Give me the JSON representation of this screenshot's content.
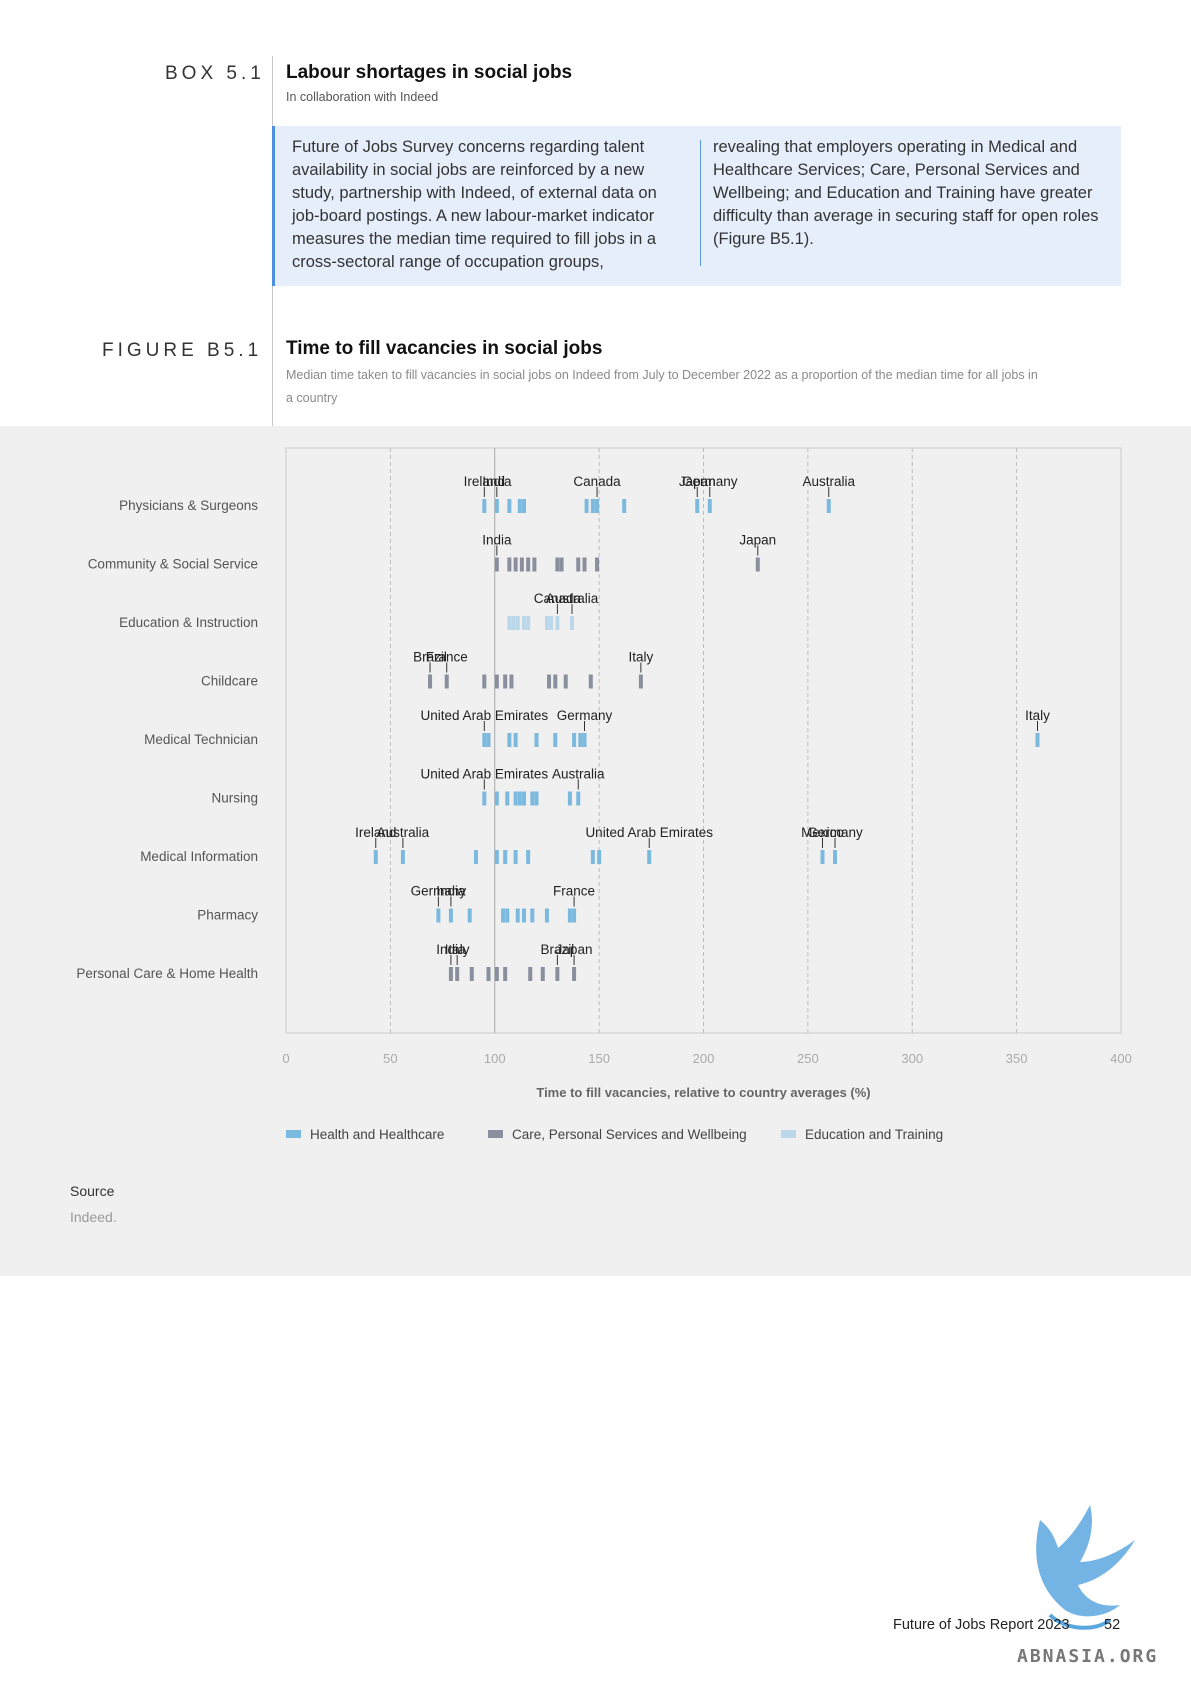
{
  "box": {
    "label": "BOX 5.1",
    "title": "Labour shortages in social jobs",
    "subtitle": "In collaboration with Indeed",
    "text_col1": "Future of Jobs Survey concerns regarding talent availability in social jobs are reinforced by a new study, partnership with Indeed, of external data on job-board postings. A new labour-market indicator measures the median time required to fill jobs in a cross-sectoral range of occupation groups,",
    "text_col2": "revealing that employers operating in Medical and Healthcare Services; Care, Personal Services and Wellbeing; and Education and Training have greater difficulty than average in securing staff for open roles (Figure B5.1)."
  },
  "figure": {
    "label": "FIGURE B5.1",
    "title": "Time to fill vacancies in social jobs",
    "subtitle": "Median time taken to fill vacancies in social jobs on Indeed from July to December 2022 as a proportion of the median time for all jobs in a country"
  },
  "chart_data": {
    "type": "scatter",
    "xlabel": "Time to fill vacancies, relative to country averages (%)",
    "xlim": [
      0,
      400
    ],
    "xticks": [
      0,
      50,
      100,
      150,
      200,
      250,
      300,
      350,
      400
    ],
    "grid": "dashed vertical lines at x ticks; solid line at 100",
    "legend_position": "bottom",
    "series": [
      {
        "name": "Health and Healthcare",
        "color": "#7cb9de"
      },
      {
        "name": "Care, Personal Services and Wellbeing",
        "color": "#8a8f9e"
      },
      {
        "name": "Education and Training",
        "color": "#bad8ea"
      }
    ],
    "rows": [
      {
        "category": "Physicians & Surgeons",
        "series": 0,
        "values": [
          95,
          101,
          107,
          112,
          114,
          144,
          147,
          149,
          162,
          197,
          203,
          260
        ],
        "labels": [
          {
            "text": "Ireland",
            "x": 95
          },
          {
            "text": "India",
            "x": 101
          },
          {
            "text": "Canada",
            "x": 149
          },
          {
            "text": "Japan",
            "x": 197
          },
          {
            "text": "Germany",
            "x": 203
          },
          {
            "text": "Australia",
            "x": 260
          }
        ]
      },
      {
        "category": "Community & Social Service",
        "series": 1,
        "values": [
          101,
          107,
          110,
          113,
          116,
          119,
          130,
          132,
          140,
          143,
          149,
          226
        ],
        "labels": [
          {
            "text": "India",
            "x": 101
          },
          {
            "text": "Japan",
            "x": 226
          }
        ]
      },
      {
        "category": "Education & Instruction",
        "series": 2,
        "values": [
          107,
          109,
          111,
          114,
          116,
          125,
          127,
          130,
          137
        ],
        "labels": [
          {
            "text": "Canada",
            "x": 130
          },
          {
            "text": "Australia",
            "x": 137
          }
        ]
      },
      {
        "category": "Childcare",
        "series": 1,
        "values": [
          69,
          77,
          95,
          101,
          105,
          108,
          126,
          129,
          134,
          146,
          170
        ],
        "labels": [
          {
            "text": "Brazil",
            "x": 69
          },
          {
            "text": "France",
            "x": 77
          },
          {
            "text": "Italy",
            "x": 170
          }
        ]
      },
      {
        "category": "Medical Technician",
        "series": 0,
        "values": [
          95,
          97,
          107,
          110,
          120,
          129,
          138,
          141,
          143,
          360
        ],
        "labels": [
          {
            "text": "United Arab Emirates",
            "x": 95
          },
          {
            "text": "Germany",
            "x": 143
          },
          {
            "text": "Italy",
            "x": 360
          }
        ]
      },
      {
        "category": "Nursing",
        "series": 0,
        "values": [
          95,
          101,
          106,
          110,
          112,
          114,
          118,
          120,
          136,
          140
        ],
        "labels": [
          {
            "text": "United Arab Emirates",
            "x": 95
          },
          {
            "text": "Australia",
            "x": 140
          }
        ]
      },
      {
        "category": "Medical Information",
        "series": 0,
        "values": [
          43,
          56,
          91,
          101,
          105,
          110,
          116,
          147,
          150,
          174,
          257,
          263
        ],
        "labels": [
          {
            "text": "Ireland",
            "x": 43
          },
          {
            "text": "Australia",
            "x": 56
          },
          {
            "text": "United Arab Emirates",
            "x": 174
          },
          {
            "text": "Mexico",
            "x": 257
          },
          {
            "text": "Germany",
            "x": 263
          }
        ]
      },
      {
        "category": "Pharmacy",
        "series": 0,
        "values": [
          73,
          79,
          88,
          104,
          106,
          111,
          114,
          118,
          125,
          136,
          138
        ],
        "labels": [
          {
            "text": "Germany",
            "x": 73
          },
          {
            "text": "India",
            "x": 79
          },
          {
            "text": "France",
            "x": 138
          }
        ]
      },
      {
        "category": "Personal Care & Home Health",
        "series": 1,
        "values": [
          79,
          82,
          89,
          97,
          101,
          105,
          117,
          123,
          130,
          138
        ],
        "labels": [
          {
            "text": "India",
            "x": 79
          },
          {
            "text": "Italy",
            "x": 82
          },
          {
            "text": "Brazil",
            "x": 130
          },
          {
            "text": "Japan",
            "x": 138
          }
        ]
      }
    ]
  },
  "source": {
    "heading": "Source",
    "text": "Indeed."
  },
  "footer": {
    "report": "Future of Jobs Report 2023",
    "page": "52"
  },
  "watermark": "ABNASIA.ORG"
}
